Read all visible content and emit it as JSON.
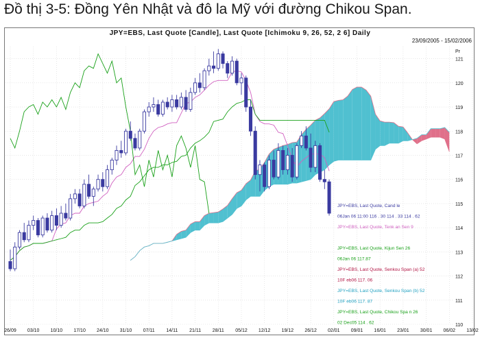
{
  "heading": "Đồ thị 3-5: Đồng Yên Nhật và đô la Mỹ với đường Chikou Span.",
  "chart_data": {
    "type": "candlestick",
    "title": "JPY=EBS, Last Quote [Candle], Last Quote [Ichimoku 9, 26, 52, 2 6] Daily",
    "date_range": "23/09/2005 - 15/02/2006",
    "y_axis_unit": "Pr",
    "ylim": [
      110,
      121.5
    ],
    "y_ticks": [
      "110",
      "111",
      "112",
      "113",
      "114",
      "115",
      "116",
      "117",
      "118",
      "119",
      "120",
      "121"
    ],
    "x_ticks": [
      "26/09",
      "03/10",
      "10/10",
      "17/10",
      "24/10",
      "31/10",
      "07/11",
      "14/11",
      "21/11",
      "28/11",
      "05/12",
      "12/12",
      "19/12",
      "26/12",
      "02/01",
      "09/01",
      "16/01",
      "23/01",
      "30/01",
      "06/02",
      "13/02"
    ],
    "candles": [
      [
        112.6,
        113.1,
        112.2,
        112.3
      ],
      [
        112.3,
        113.4,
        112.2,
        113.2
      ],
      [
        113.2,
        113.9,
        113.1,
        113.8
      ],
      [
        113.8,
        114.2,
        113.4,
        113.5
      ],
      [
        113.5,
        114.3,
        113.4,
        114.1
      ],
      [
        114.1,
        114.5,
        113.9,
        114.3
      ],
      [
        114.3,
        114.4,
        113.6,
        113.7
      ],
      [
        113.7,
        114.5,
        113.6,
        114.4
      ],
      [
        114.4,
        114.6,
        113.8,
        113.9
      ],
      [
        113.9,
        114.7,
        113.8,
        114.5
      ],
      [
        114.5,
        114.8,
        113.9,
        114.1
      ],
      [
        114.1,
        114.9,
        114.0,
        114.6
      ],
      [
        114.6,
        115.0,
        114.3,
        114.4
      ],
      [
        114.4,
        115.4,
        114.3,
        115.2
      ],
      [
        115.2,
        115.6,
        115.0,
        115.4
      ],
      [
        115.4,
        115.6,
        114.8,
        114.9
      ],
      [
        114.9,
        116.0,
        114.8,
        115.8
      ],
      [
        115.8,
        116.2,
        115.2,
        115.3
      ],
      [
        115.3,
        115.7,
        114.9,
        115.6
      ],
      [
        115.6,
        116.2,
        115.5,
        116.0
      ],
      [
        116.0,
        116.3,
        115.5,
        115.7
      ],
      [
        115.7,
        116.6,
        115.6,
        116.4
      ],
      [
        116.4,
        116.9,
        116.2,
        116.8
      ],
      [
        116.8,
        117.4,
        116.6,
        117.2
      ],
      [
        117.2,
        117.6,
        116.9,
        117.1
      ],
      [
        117.1,
        118.1,
        117.0,
        118.0
      ],
      [
        118.0,
        118.4,
        117.6,
        117.7
      ],
      [
        117.7,
        117.9,
        117.2,
        117.3
      ],
      [
        117.3,
        118.1,
        117.2,
        118.0
      ],
      [
        118.0,
        118.9,
        117.9,
        118.8
      ],
      [
        118.8,
        119.2,
        118.6,
        119.0
      ],
      [
        119.0,
        119.4,
        118.8,
        119.1
      ],
      [
        119.1,
        119.3,
        118.6,
        118.7
      ],
      [
        118.7,
        119.3,
        118.6,
        119.2
      ],
      [
        119.2,
        119.4,
        118.9,
        119.0
      ],
      [
        119.0,
        119.5,
        118.8,
        119.3
      ],
      [
        119.3,
        119.5,
        118.9,
        119.0
      ],
      [
        119.0,
        119.6,
        118.9,
        119.4
      ],
      [
        119.4,
        119.7,
        118.8,
        118.9
      ],
      [
        118.9,
        119.8,
        118.8,
        119.6
      ],
      [
        119.6,
        120.2,
        119.5,
        120.0
      ],
      [
        120.0,
        120.4,
        119.6,
        119.8
      ],
      [
        119.8,
        120.6,
        119.7,
        120.5
      ],
      [
        120.5,
        121.0,
        120.3,
        120.7
      ],
      [
        120.7,
        121.3,
        120.4,
        120.6
      ],
      [
        120.6,
        121.4,
        120.5,
        121.2
      ],
      [
        121.2,
        121.3,
        120.6,
        120.8
      ],
      [
        120.8,
        120.9,
        120.2,
        120.4
      ],
      [
        120.4,
        121.1,
        120.3,
        120.9
      ],
      [
        120.9,
        121.0,
        119.9,
        120.0
      ],
      [
        120.0,
        120.4,
        119.5,
        120.2
      ],
      [
        120.2,
        120.3,
        118.8,
        119.0
      ],
      [
        119.0,
        119.3,
        117.8,
        118.0
      ],
      [
        118.0,
        118.2,
        116.0,
        116.2
      ],
      [
        116.2,
        116.8,
        115.5,
        116.6
      ],
      [
        116.6,
        116.7,
        115.5,
        115.7
      ],
      [
        115.7,
        117.0,
        115.6,
        116.8
      ],
      [
        116.8,
        117.2,
        116.0,
        116.1
      ],
      [
        116.1,
        117.5,
        116.0,
        117.2
      ],
      [
        117.2,
        117.4,
        116.2,
        116.4
      ],
      [
        116.4,
        117.3,
        116.2,
        117.0
      ],
      [
        117.0,
        117.3,
        115.9,
        116.1
      ],
      [
        116.1,
        117.5,
        116.0,
        117.4
      ],
      [
        117.4,
        118.0,
        117.3,
        117.8
      ],
      [
        117.8,
        118.2,
        117.2,
        117.3
      ],
      [
        117.3,
        117.9,
        116.3,
        116.5
      ],
      [
        116.5,
        117.6,
        116.3,
        117.4
      ],
      [
        117.4,
        117.5,
        115.9,
        116.0
      ],
      [
        116.0,
        116.4,
        115.6,
        115.9
      ],
      [
        115.9,
        116.0,
        114.5,
        114.6
      ]
    ],
    "legend": [
      {
        "name": "JPY=EBS, Last  Quote, Cand  le",
        "value": "06Jan  06  11:00 116  . 30 114  . 33 114 . 62",
        "color": "#3a3aa0"
      },
      {
        "name": "JPY=EBS, Last  Quote, Tenk  an Sen 9",
        "value": "",
        "color": "#d060c0"
      },
      {
        "name": "JPY=EBS, Last  Quote, Kijun  Sen 26",
        "value": "06Jan  06 117.87",
        "color": "#18a018"
      },
      {
        "name": "JPY=EBS, Last  Quote, Senkou  Span (a) 52",
        "value": "10F eb06 117.  06",
        "color": "#b01040"
      },
      {
        "name": "JPY=EBS, Last  Quote, Senkou  Span (b) 52",
        "value": "10F eb06 117.  87",
        "color": "#20a0c0"
      },
      {
        "name": "JPY=EBS, Last  Quote, Chikou Spa  n 26",
        "value": "02 Dec05 114  . 62",
        "color": "#18a018"
      }
    ],
    "colors": {
      "candle": "#3a3aa0",
      "tenkan": "#d060c0",
      "kijun": "#18a018",
      "chikou": "#18a018",
      "cloud_bear": "#e0708a",
      "cloud_bull": "#50c0d0"
    }
  }
}
